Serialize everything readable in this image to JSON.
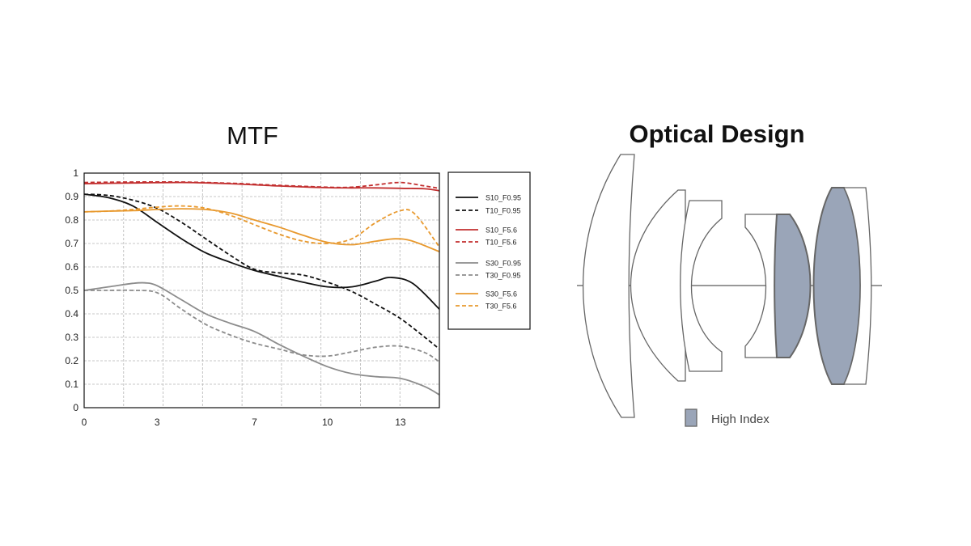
{
  "mtf_title": "MTF",
  "optical_title": "Optical Design",
  "high_index_label": "High Index",
  "colors": {
    "black": "#111111",
    "red": "#c22f2f",
    "gray": "#8c8c8c",
    "orange": "#e8992e",
    "lens_fill": "#9aa5b8",
    "lens_stroke": "#666666"
  },
  "chart_data": {
    "type": "line",
    "title": "MTF",
    "xlabel": "",
    "ylabel": "",
    "xlim": [
      0,
      14.6
    ],
    "ylim": [
      0,
      1
    ],
    "xticks": [
      0,
      3,
      7,
      10,
      13
    ],
    "yticks": [
      0,
      0.1,
      0.2,
      0.3,
      0.4,
      0.5,
      0.6,
      0.7,
      0.8,
      0.9,
      1
    ],
    "ytick_labels": [
      "0",
      "0.1",
      "0.2",
      "0.3",
      "0.4",
      "0.5",
      "0.6",
      "0.7",
      "0.8",
      "0.9",
      "1"
    ],
    "grid": true,
    "legend": "right",
    "series": [
      {
        "name": "S10_F0.95",
        "color": "#111111",
        "dash": false,
        "x": [
          0,
          1,
          2,
          3,
          4,
          5,
          6,
          7,
          8,
          9,
          10,
          11,
          12,
          12.6,
          13.5,
          14.6
        ],
        "y": [
          0.91,
          0.895,
          0.86,
          0.79,
          0.72,
          0.66,
          0.62,
          0.585,
          0.56,
          0.535,
          0.515,
          0.515,
          0.54,
          0.555,
          0.53,
          0.42
        ]
      },
      {
        "name": "T10_F0.95",
        "color": "#111111",
        "dash": true,
        "x": [
          0,
          1,
          2,
          3,
          4,
          5,
          6,
          7,
          8,
          9,
          10,
          11,
          12,
          13,
          14,
          14.6
        ],
        "y": [
          0.91,
          0.905,
          0.885,
          0.85,
          0.79,
          0.72,
          0.65,
          0.59,
          0.575,
          0.565,
          0.535,
          0.495,
          0.44,
          0.38,
          0.3,
          0.25
        ]
      },
      {
        "name": "S10_F5.6",
        "color": "#c22f2f",
        "dash": false,
        "x": [
          0,
          2,
          4,
          6,
          8,
          10,
          11,
          12,
          13,
          14,
          14.6
        ],
        "y": [
          0.955,
          0.958,
          0.96,
          0.955,
          0.945,
          0.938,
          0.937,
          0.937,
          0.935,
          0.933,
          0.925
        ]
      },
      {
        "name": "T10_F5.6",
        "color": "#c22f2f",
        "dash": true,
        "x": [
          0,
          2,
          4,
          6,
          8,
          10,
          11,
          12,
          13,
          14,
          14.6
        ],
        "y": [
          0.96,
          0.962,
          0.962,
          0.957,
          0.948,
          0.94,
          0.94,
          0.95,
          0.96,
          0.945,
          0.935
        ]
      },
      {
        "name": "S30_F0.95",
        "color": "#8c8c8c",
        "dash": false,
        "x": [
          0,
          1,
          2,
          2.5,
          3,
          4,
          5,
          6,
          7,
          8,
          9,
          10,
          11,
          12,
          13,
          14,
          14.6
        ],
        "y": [
          0.5,
          0.515,
          0.53,
          0.532,
          0.52,
          0.46,
          0.4,
          0.36,
          0.325,
          0.27,
          0.22,
          0.175,
          0.145,
          0.132,
          0.125,
          0.09,
          0.055
        ]
      },
      {
        "name": "T30_F0.95",
        "color": "#8c8c8c",
        "dash": true,
        "x": [
          0,
          1,
          2,
          3,
          4,
          5,
          6,
          7,
          8,
          9,
          10,
          11,
          12,
          13,
          14,
          14.6
        ],
        "y": [
          0.5,
          0.5,
          0.5,
          0.49,
          0.42,
          0.355,
          0.31,
          0.275,
          0.25,
          0.225,
          0.22,
          0.238,
          0.258,
          0.262,
          0.235,
          0.195
        ]
      },
      {
        "name": "S30_F5.6",
        "color": "#e8992e",
        "dash": false,
        "x": [
          0,
          1,
          2,
          3,
          4,
          5,
          6,
          7,
          8,
          9,
          10,
          11,
          12,
          12.8,
          13.5,
          14.6
        ],
        "y": [
          0.835,
          0.838,
          0.84,
          0.845,
          0.848,
          0.845,
          0.83,
          0.8,
          0.77,
          0.735,
          0.705,
          0.695,
          0.71,
          0.72,
          0.71,
          0.665
        ]
      },
      {
        "name": "T30_F5.6",
        "color": "#e8992e",
        "dash": true,
        "x": [
          0,
          1,
          2,
          3,
          4,
          5,
          6,
          7,
          8,
          9,
          10,
          11,
          12,
          13,
          13.6,
          14.6
        ],
        "y": [
          0.835,
          0.838,
          0.845,
          0.855,
          0.86,
          0.85,
          0.82,
          0.78,
          0.74,
          0.71,
          0.7,
          0.72,
          0.79,
          0.84,
          0.825,
          0.685
        ]
      }
    ]
  }
}
